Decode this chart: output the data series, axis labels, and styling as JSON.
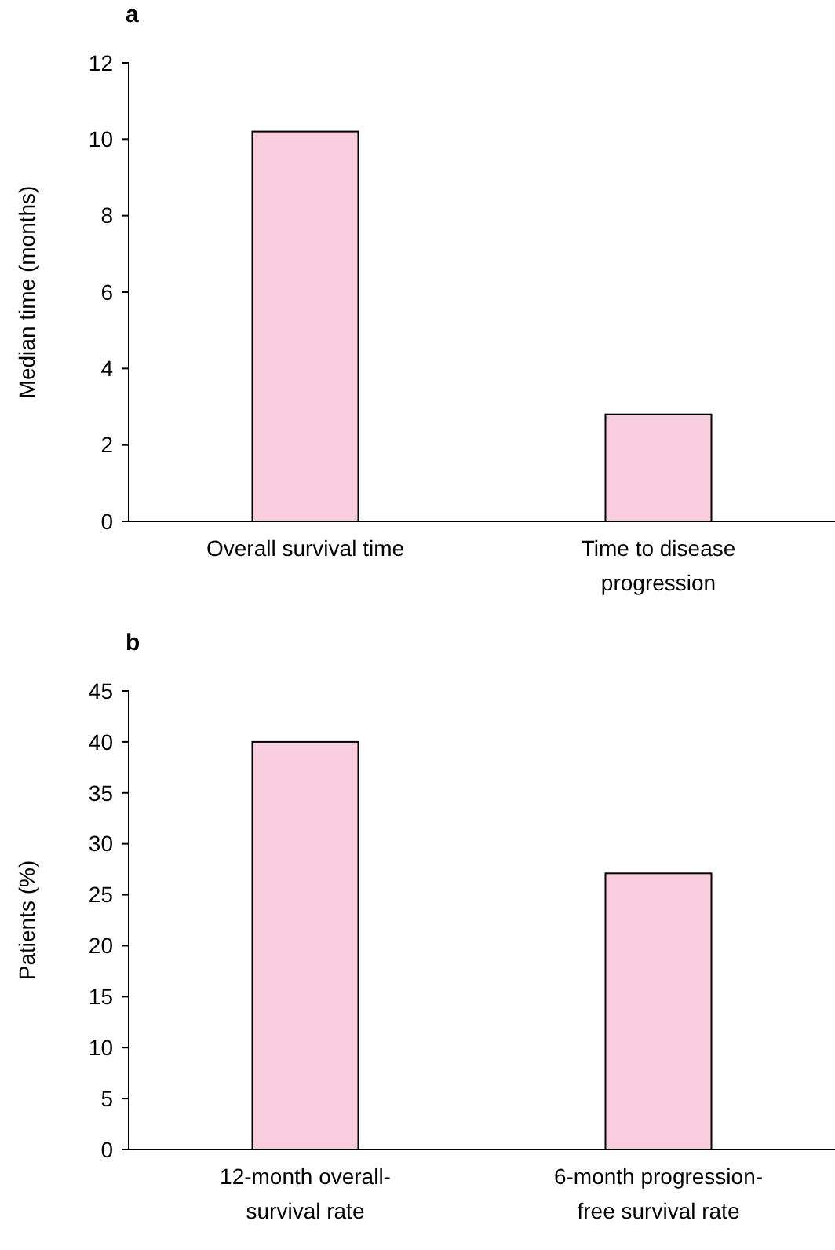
{
  "chart_data": [
    {
      "type": "bar",
      "title": "a",
      "ylabel": "Median time (months)",
      "categories": [
        "Overall survival time",
        "Time to disease progression"
      ],
      "values": [
        10.2,
        2.8
      ],
      "color": "#f8cede",
      "ylim": [
        0,
        12
      ],
      "yticks": [
        0,
        2,
        4,
        6,
        8,
        10,
        12
      ]
    },
    {
      "type": "bar",
      "title": "b",
      "ylabel": "Patients (%)",
      "categories": [
        "12-month overall-survival rate",
        "6-month progression-free survival rate"
      ],
      "values": [
        40,
        27.1
      ],
      "color": "#f8cede",
      "ylim": [
        0,
        45
      ],
      "yticks": [
        0,
        5,
        10,
        15,
        20,
        25,
        30,
        35,
        40,
        45
      ]
    }
  ]
}
